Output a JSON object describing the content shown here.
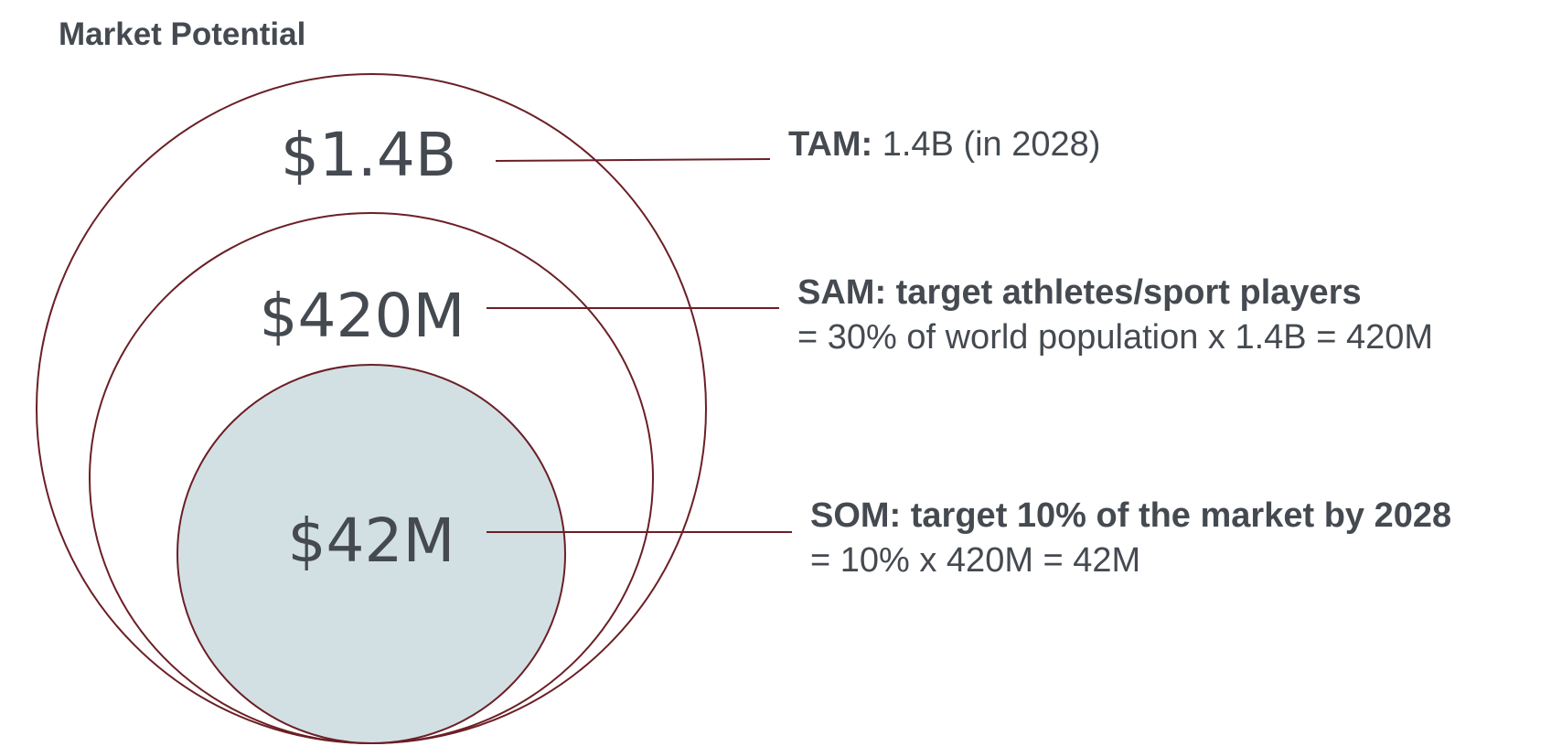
{
  "title": "Market Potential",
  "tam": {
    "value": "$1.4B",
    "key": "TAM:",
    "detail": " 1.4B (in 2028)"
  },
  "sam": {
    "value": "$420M",
    "heading": "SAM: target athletes/sport players",
    "formula": "= 30% of world population x 1.4B = 420M"
  },
  "som": {
    "value": "$42M",
    "heading": "SOM: target 10% of the market by 2028",
    "formula": "= 10% x 420M = 42M"
  },
  "colors": {
    "ring_stroke": "#6b1f26",
    "inner_fill": "#d2e0e3",
    "text": "#454a51"
  }
}
